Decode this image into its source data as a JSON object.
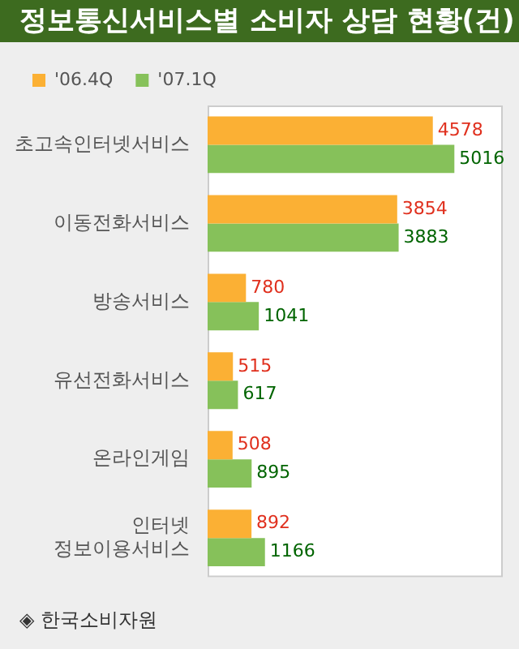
{
  "chart_data": {
    "type": "bar",
    "orientation": "horizontal",
    "title": "정보통신서비스별 소비자 상담 현황(건)",
    "categories": [
      "초고속인터넷서비스",
      "이동전화서비스",
      "방송서비스",
      "유선전화서비스",
      "온라인게임",
      "인터넷 정보이용서비스"
    ],
    "series": [
      {
        "name": "'06.4Q",
        "color": "#fbb034",
        "values": [
          4578,
          3854,
          780,
          515,
          508,
          892
        ]
      },
      {
        "name": "'07.1Q",
        "color": "#86c15a",
        "values": [
          5016,
          3883,
          1041,
          617,
          895,
          1166
        ]
      }
    ],
    "xlim": [
      0,
      6000
    ],
    "data_labels": true,
    "grid": false,
    "legend": "top left",
    "tick_labels": "y",
    "annotations": [
      "◈ 한국소비자원"
    ]
  }
}
